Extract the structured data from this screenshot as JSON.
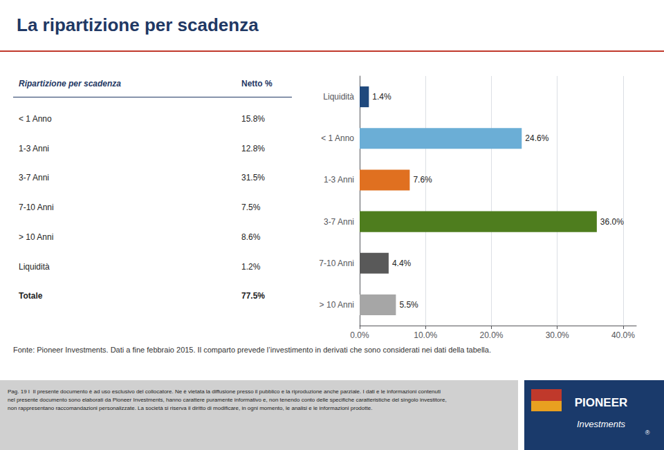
{
  "chart_data": {
    "type": "bar",
    "orientation": "horizontal",
    "title": "La ripartizione per scadenza",
    "categories": [
      "> 10 Anni",
      "7-10 Anni",
      "3-7 Anni",
      "1-3 Anni",
      "< 1 Anno",
      "Liquidità"
    ],
    "values": [
      5.5,
      4.4,
      36.0,
      7.6,
      24.6,
      1.4
    ],
    "value_labels": [
      "5.5%",
      "4.4%",
      "36.0%",
      "7.6%",
      "24.6%",
      "1.4%"
    ],
    "colors": [
      "#a6a6a6",
      "#595959",
      "#4e7d1e",
      "#e07020",
      "#6baed6",
      "#1f497d"
    ],
    "data_labels": true,
    "xlim": [
      0,
      42
    ],
    "xticks": [
      {
        "value": 0,
        "label": "0.0%"
      },
      {
        "value": 10,
        "label": "10.0%"
      },
      {
        "value": 20,
        "label": "20.0%"
      },
      {
        "value": 30,
        "label": "30.0%"
      },
      {
        "value": 40,
        "label": "40.0%"
      }
    ],
    "grid": true,
    "table": {
      "columns": [
        "Ripartizione per scadenza",
        "Netto %"
      ],
      "rows": [
        [
          "< 1 Anno",
          "15.8%"
        ],
        [
          "1-3 Anni",
          "12.8%"
        ],
        [
          "3-7 Anni",
          "31.5%"
        ],
        [
          "7-10 Anni",
          "7.5%"
        ],
        [
          "> 10 Anni",
          "8.6%"
        ],
        [
          "Liquidità",
          "1.2%"
        ],
        [
          "Totale",
          "77.5%"
        ]
      ]
    },
    "annotations": [
      "Fonte: Pioneer Investments. Dati a fine febbraio 2015. Il comparto prevede l’investimento in derivati che sono considerati nei dati della tabella.",
      "Pag. 19 I  Il presente documento è ad uso esclusivo del collocatore. Ne è vietata la diffusione presso il pubblico e la riproduzione anche parziale. I dati e le informazioni contenuti",
      "nel presente documento sono elaborati da Pioneer Investments, hanno carattere puramente informativo e, non tenendo conto delle specifiche caratteristiche del singolo investitore,",
      "non rappresentano raccomandazioni personalizzate. La società si riserva il diritto di modificare, in ogni momento, le analisi e le informazioni prodotte.",
      "PIONEER",
      "Investments",
      "®"
    ]
  }
}
